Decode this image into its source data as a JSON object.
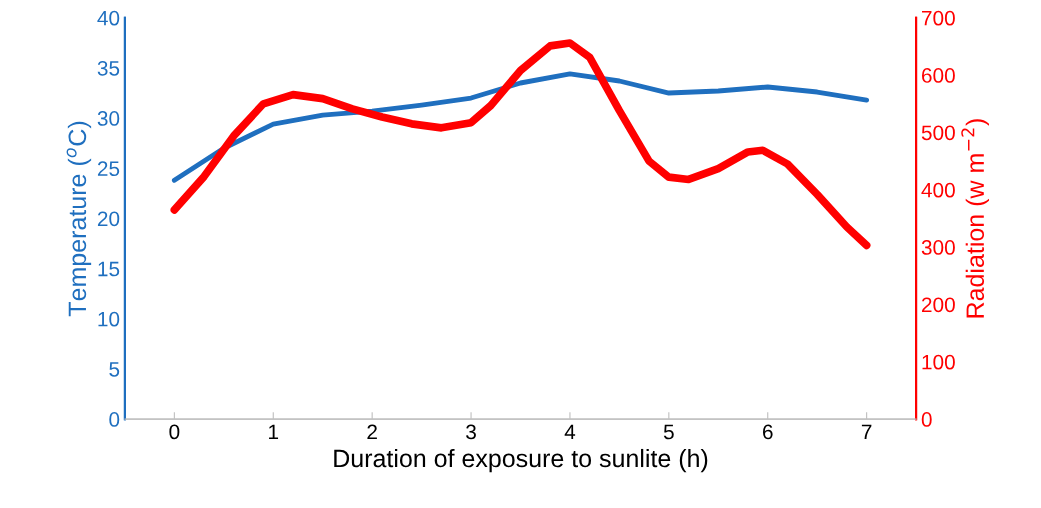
{
  "chart_data": {
    "type": "line",
    "xlabel": "Duration of exposure to sunlite (h)",
    "ylabel": "Temperature ($^{o}$C)",
    "y2label": "Radiation (w m$^{−2}$)",
    "series": [
      {
        "color": "#1f6fbf",
        "x": [
          0,
          0.5,
          1,
          1.5,
          2,
          2.5,
          3,
          3.5,
          4,
          4.5,
          5,
          5.5,
          6,
          6.5,
          7
        ],
        "values": [
          23.8,
          27.0,
          29.4,
          30.3,
          30.7,
          31.3,
          32.0,
          33.5,
          34.4,
          33.7,
          32.5,
          32.7,
          33.1,
          32.6,
          31.8
        ]
      },
      {
        "axis": "y2",
        "color": "#ff0000",
        "x": [
          0,
          0.3,
          0.6,
          0.9,
          1.2,
          1.5,
          1.8,
          2.1,
          2.4,
          2.7,
          3.0,
          3.2,
          3.5,
          3.8,
          4.0,
          4.2,
          4.5,
          4.8,
          5.0,
          5.2,
          5.5,
          5.8,
          5.95,
          6.2,
          6.5,
          6.8,
          7.0
        ],
        "values": [
          365,
          423,
          494,
          550,
          566,
          559,
          541,
          527,
          515,
          508,
          517,
          547,
          608,
          651,
          656,
          631,
          538,
          450,
          422,
          418,
          437,
          466,
          469,
          445,
          392,
          335,
          303
        ]
      }
    ],
    "xlim": [
      -0.5,
      7.5
    ],
    "xticks": [
      0,
      1,
      2,
      3,
      4,
      5,
      6,
      7
    ],
    "ylim": [
      0,
      40
    ],
    "yticks": [
      0,
      5,
      10,
      15,
      20,
      25,
      30,
      35,
      40
    ],
    "y2lim": [
      0,
      700
    ],
    "y2ticks": [
      0,
      100,
      200,
      300,
      400,
      500,
      600,
      700
    ],
    "grid": false,
    "marker": "none",
    "line_style": "solid"
  }
}
